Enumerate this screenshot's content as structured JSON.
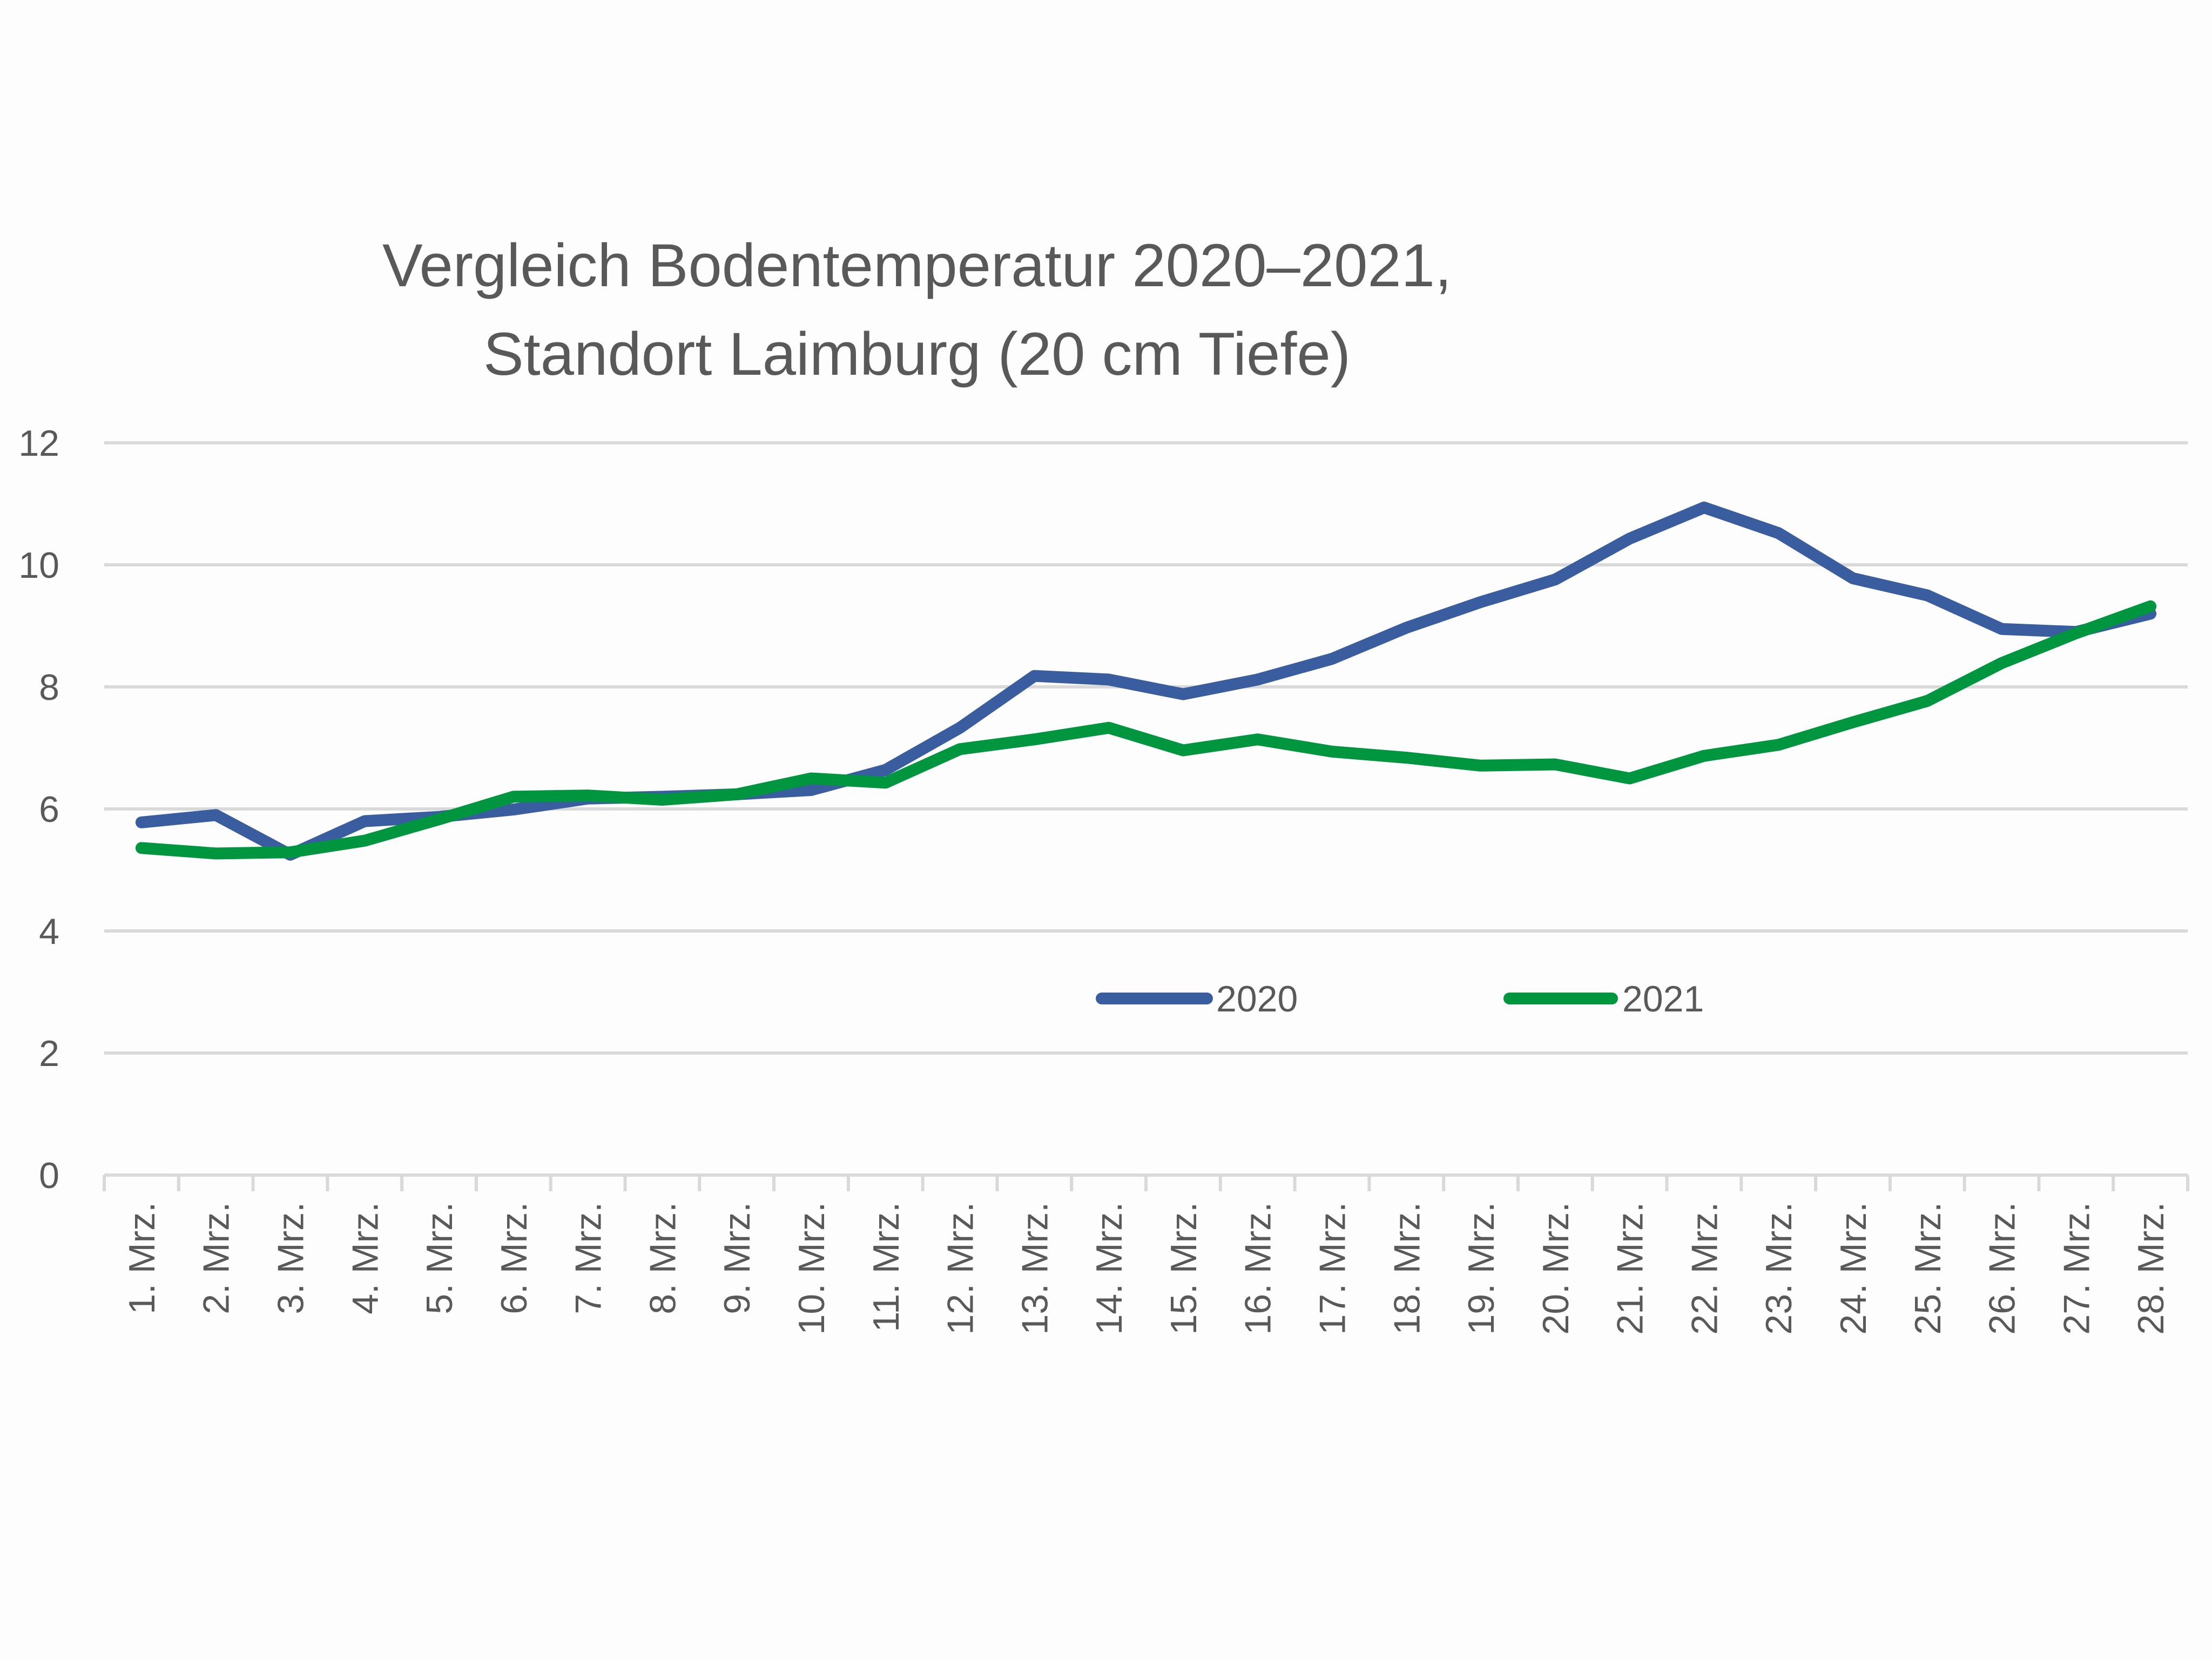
{
  "chart_data": {
    "type": "line",
    "title": [
      "Vergleich Bodentemperatur 2020–2021,",
      "Standort Laimburg (20 cm Tiefe)"
    ],
    "xlabel": "",
    "ylabel": "",
    "ylim": [
      0,
      12
    ],
    "yticks": [
      "0",
      "2",
      "4",
      "6",
      "8",
      "10",
      "12"
    ],
    "grid": true,
    "legend_position": "bottom-center-inside",
    "categories": [
      "1. Mrz.",
      "2. Mrz.",
      "3. Mrz.",
      "4. Mrz.",
      "5. Mrz.",
      "6. Mrz.",
      "7. Mrz.",
      "8. Mrz.",
      "9. Mrz.",
      "10. Mrz.",
      "11. Mrz.",
      "12. Mrz.",
      "13. Mrz.",
      "14. Mrz.",
      "15. Mrz.",
      "16. Mrz.",
      "17. Mrz.",
      "18. Mrz.",
      "19. Mrz.",
      "20. Mrz.",
      "21. Mrz.",
      "22. Mrz.",
      "23. Mrz.",
      "24. Mrz.",
      "25. Mrz.",
      "26. Mrz.",
      "27. Mrz.",
      "28. Mrz."
    ],
    "series": [
      {
        "name": "2020",
        "color": "#3a5da0",
        "values": [
          5.78,
          5.9,
          5.25,
          5.8,
          5.87,
          5.99,
          6.17,
          6.2,
          6.24,
          6.31,
          6.64,
          7.33,
          8.18,
          8.12,
          7.88,
          8.12,
          8.46,
          8.97,
          9.39,
          9.76,
          10.43,
          10.94,
          10.52,
          9.78,
          9.5,
          8.95,
          8.9,
          9.2
        ]
      },
      {
        "name": "2021",
        "color": "#00963f",
        "values": [
          5.36,
          5.27,
          5.29,
          5.48,
          5.83,
          6.2,
          6.22,
          6.15,
          6.24,
          6.5,
          6.43,
          6.98,
          7.14,
          7.33,
          6.96,
          7.14,
          6.94,
          6.84,
          6.71,
          6.73,
          6.5,
          6.87,
          7.05,
          7.42,
          7.77,
          8.39,
          8.88,
          9.32
        ]
      }
    ]
  }
}
